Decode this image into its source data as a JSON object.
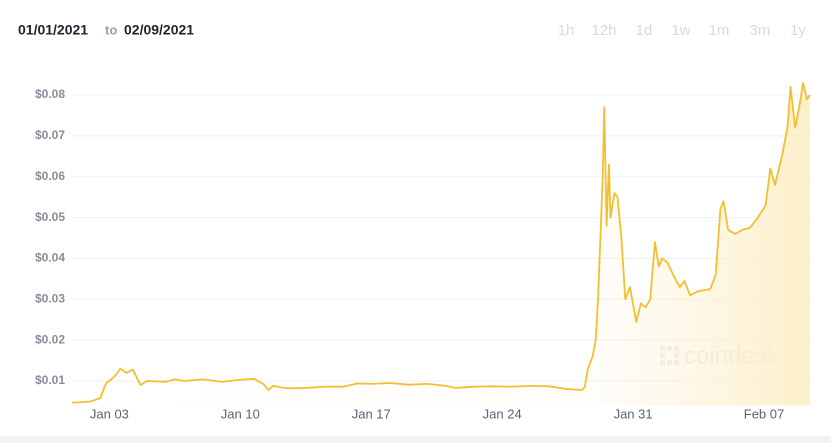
{
  "header": {
    "from_date": "01/01/2021",
    "to_label": "to",
    "to_date": "02/09/2021",
    "range_buttons": [
      "1h",
      "12h",
      "1d",
      "1w",
      "1m",
      "3m",
      "1y"
    ]
  },
  "watermark": "coindesk",
  "chart_data": {
    "type": "line",
    "x": [
      "2021-01-01T00:00",
      "2021-01-01T12:00",
      "2021-01-02T00:00",
      "2021-01-02T12:00",
      "2021-01-02T20:00",
      "2021-01-03T06:00",
      "2021-01-03T14:00",
      "2021-01-03T22:00",
      "2021-01-04T06:00",
      "2021-01-04T16:00",
      "2021-01-05T00:00",
      "2021-01-06T00:00",
      "2021-01-06T12:00",
      "2021-01-07T00:00",
      "2021-01-08T00:00",
      "2021-01-09T00:00",
      "2021-01-10T00:00",
      "2021-01-10T18:00",
      "2021-01-11T06:00",
      "2021-01-11T12:00",
      "2021-01-11T18:00",
      "2021-01-12T12:00",
      "2021-01-13T12:00",
      "2021-01-14T12:00",
      "2021-01-15T12:00",
      "2021-01-16T06:00",
      "2021-01-17T00:00",
      "2021-01-18T00:00",
      "2021-01-19T00:00",
      "2021-01-20T00:00",
      "2021-01-21T00:00",
      "2021-01-21T12:00",
      "2021-01-22T12:00",
      "2021-01-23T12:00",
      "2021-01-24T12:00",
      "2021-01-25T12:00",
      "2021-01-26T12:00",
      "2021-01-27T12:00",
      "2021-01-28T06:00",
      "2021-01-28T10:00",
      "2021-01-28T14:00",
      "2021-01-28T20:00",
      "2021-01-29T00:00",
      "2021-01-29T03:00",
      "2021-01-29T06:00",
      "2021-01-29T09:00",
      "2021-01-29T11:00",
      "2021-01-29T14:00",
      "2021-01-29T17:00",
      "2021-01-29T19:00",
      "2021-01-30T00:00",
      "2021-01-30T04:00",
      "2021-01-30T09:00",
      "2021-01-30T14:00",
      "2021-01-30T20:00",
      "2021-01-31T04:00",
      "2021-01-31T10:00",
      "2021-01-31T16:00",
      "2021-01-31T22:00",
      "2021-02-01T04:00",
      "2021-02-01T09:00",
      "2021-02-01T13:00",
      "2021-02-01T20:00",
      "2021-02-02T06:00",
      "2021-02-02T12:00",
      "2021-02-02T18:00",
      "2021-02-03T01:00",
      "2021-02-03T12:00",
      "2021-02-04T03:00",
      "2021-02-04T10:00",
      "2021-02-04T16:00",
      "2021-02-04T20:00",
      "2021-02-05T02:00",
      "2021-02-05T11:00",
      "2021-02-05T20:00",
      "2021-02-06T06:00",
      "2021-02-06T16:00",
      "2021-02-07T02:00",
      "2021-02-07T08:00",
      "2021-02-07T14:00",
      "2021-02-07T23:00",
      "2021-02-08T06:00",
      "2021-02-08T10:00",
      "2021-02-08T16:00",
      "2021-02-08T22:00",
      "2021-02-09T02:00",
      "2021-02-09T07:00",
      "2021-02-09T11:00"
    ],
    "series": [
      {
        "name": "Price",
        "color": "#f4bf2f",
        "values": [
          0.0047,
          0.0048,
          0.005,
          0.0058,
          0.0095,
          0.011,
          0.013,
          0.012,
          0.0128,
          0.009,
          0.01,
          0.0098,
          0.0104,
          0.01,
          0.0104,
          0.0098,
          0.0103,
          0.0105,
          0.0092,
          0.0078,
          0.0088,
          0.0082,
          0.0083,
          0.0086,
          0.0086,
          0.0094,
          0.0093,
          0.0095,
          0.0091,
          0.0093,
          0.0088,
          0.0083,
          0.0086,
          0.0087,
          0.0086,
          0.0088,
          0.0087,
          0.008,
          0.0078,
          0.0085,
          0.013,
          0.016,
          0.02,
          0.03,
          0.045,
          0.06,
          0.077,
          0.048,
          0.063,
          0.05,
          0.056,
          0.055,
          0.045,
          0.03,
          0.033,
          0.0245,
          0.029,
          0.028,
          0.03,
          0.044,
          0.038,
          0.04,
          0.039,
          0.035,
          0.033,
          0.0345,
          0.031,
          0.032,
          0.0325,
          0.036,
          0.052,
          0.054,
          0.047,
          0.046,
          0.047,
          0.0475,
          0.05,
          0.053,
          0.062,
          0.058,
          0.065,
          0.072,
          0.082,
          0.072,
          0.078,
          0.083,
          0.079,
          0.08
        ]
      }
    ],
    "xlim": [
      "2021-01-01T00:00",
      "2021-02-09T11:00"
    ],
    "xticks": [
      {
        "value": "2021-01-03T00:00",
        "label": "Jan 03"
      },
      {
        "value": "2021-01-10T00:00",
        "label": "Jan 10"
      },
      {
        "value": "2021-01-17T00:00",
        "label": "Jan 17"
      },
      {
        "value": "2021-01-24T00:00",
        "label": "Jan 24"
      },
      {
        "value": "2021-01-31T00:00",
        "label": "Jan 31"
      },
      {
        "value": "2021-02-07T00:00",
        "label": "Feb 07"
      }
    ],
    "ylim": [
      0.004,
      0.084
    ],
    "yticks": [
      {
        "value": 0.01,
        "label": "$0.01"
      },
      {
        "value": 0.02,
        "label": "$0.02"
      },
      {
        "value": 0.03,
        "label": "$0.03"
      },
      {
        "value": 0.04,
        "label": "$0.04"
      },
      {
        "value": 0.05,
        "label": "$0.05"
      },
      {
        "value": 0.06,
        "label": "$0.06"
      },
      {
        "value": 0.07,
        "label": "$0.07"
      },
      {
        "value": 0.08,
        "label": "$0.08"
      }
    ],
    "grid": true
  }
}
